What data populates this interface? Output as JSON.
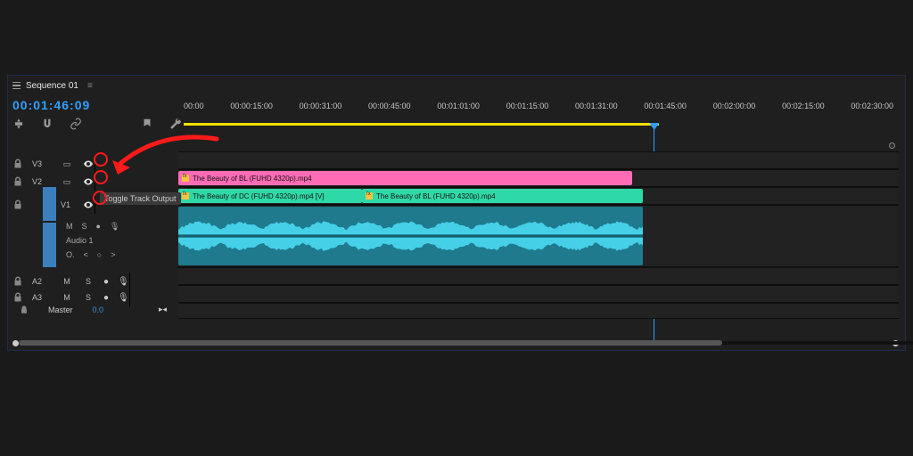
{
  "sequence": {
    "name": "Sequence 01"
  },
  "timecode": "00:01:46:09",
  "ruler": {
    "labels": [
      "00:00",
      "00:00:15:00",
      "00:00:31:00",
      "00:00:45:00",
      "00:01:01:00",
      "00:01:15:00",
      "00:01:31:00",
      "00:01:45:00",
      "00:02:00:00",
      "00:02:15:00",
      "00:02:30:00"
    ],
    "yellow_start_pct": 0,
    "yellow_end_pct": 66,
    "playhead_pct": 66
  },
  "tooltip": "Toggle Track Output",
  "tracks": {
    "v3": {
      "label": "V3"
    },
    "v2": {
      "label": "V2"
    },
    "v1": {
      "label": "V1"
    },
    "a1": {
      "label": "A1",
      "expanded_label": "Audio 1"
    },
    "a2": {
      "label": "A2"
    },
    "a3": {
      "label": "A3"
    },
    "master": {
      "label": "Master",
      "value": "0.0"
    }
  },
  "clips": {
    "v2": {
      "color": "#ff6bb5",
      "left_pct": 0,
      "width_pct": 63,
      "label": "The Beauty of BL (FUHD 4320p).mp4"
    },
    "v1a": {
      "color": "#2fd9a7",
      "left_pct": 0,
      "width_pct": 25.5,
      "label": "The Beauty of DC (FUHD 4320p).mp4 [V]"
    },
    "v1b": {
      "color": "#2fd9a7",
      "left_pct": 25.5,
      "width_pct": 39,
      "label": "The Beauty of BL (FUHD 4320p).mp4"
    },
    "a1": {
      "color": "#1e7a8c",
      "wave": "#45d0e8",
      "left_pct": 0,
      "width_pct": 64.5
    }
  },
  "colors": {
    "bg": "#1a1a1a",
    "panel": "#1f1f1f",
    "accent": "#2f9fff",
    "yellow": "#ffe000",
    "red": "#ff1a1a"
  }
}
